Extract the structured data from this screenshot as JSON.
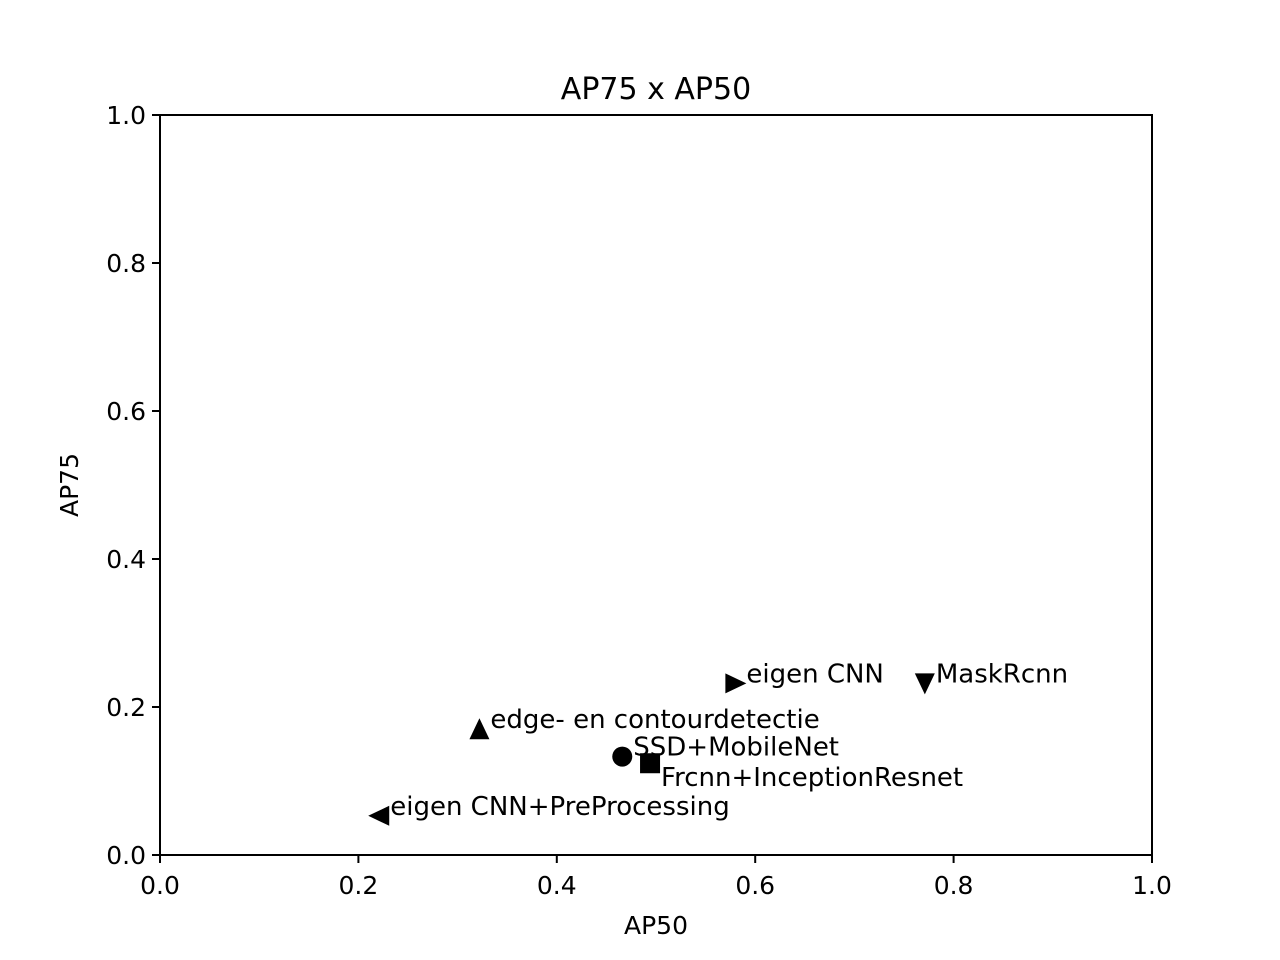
{
  "chart_data": {
    "type": "scatter",
    "title": "AP75 x AP50",
    "xlabel": "AP50",
    "ylabel": "AP75",
    "xlim": [
      0.0,
      1.0
    ],
    "ylim": [
      0.0,
      1.0
    ],
    "x_ticks": [
      "0.0",
      "0.2",
      "0.4",
      "0.6",
      "0.8",
      "1.0"
    ],
    "y_ticks": [
      "0.0",
      "0.2",
      "0.4",
      "0.6",
      "0.8",
      "1.0"
    ],
    "grid": false,
    "marker_color": "#000000",
    "points": [
      {
        "label": "SSD+MobileNet",
        "x": 0.466,
        "y": 0.133,
        "marker": "circle"
      },
      {
        "label": "Frcnn+InceptionResnet",
        "x": 0.494,
        "y": 0.124,
        "marker": "square"
      },
      {
        "label": "edge- en contourdetectie",
        "x": 0.322,
        "y": 0.17,
        "marker": "triangle-up"
      },
      {
        "label": "eigen CNN+PreProcessing",
        "x": 0.221,
        "y": 0.053,
        "marker": "triangle-left"
      },
      {
        "label": "eigen CNN",
        "x": 0.58,
        "y": 0.232,
        "marker": "triangle-right"
      },
      {
        "label": "MaskRcnn",
        "x": 0.771,
        "y": 0.232,
        "marker": "triangle-down"
      }
    ]
  }
}
